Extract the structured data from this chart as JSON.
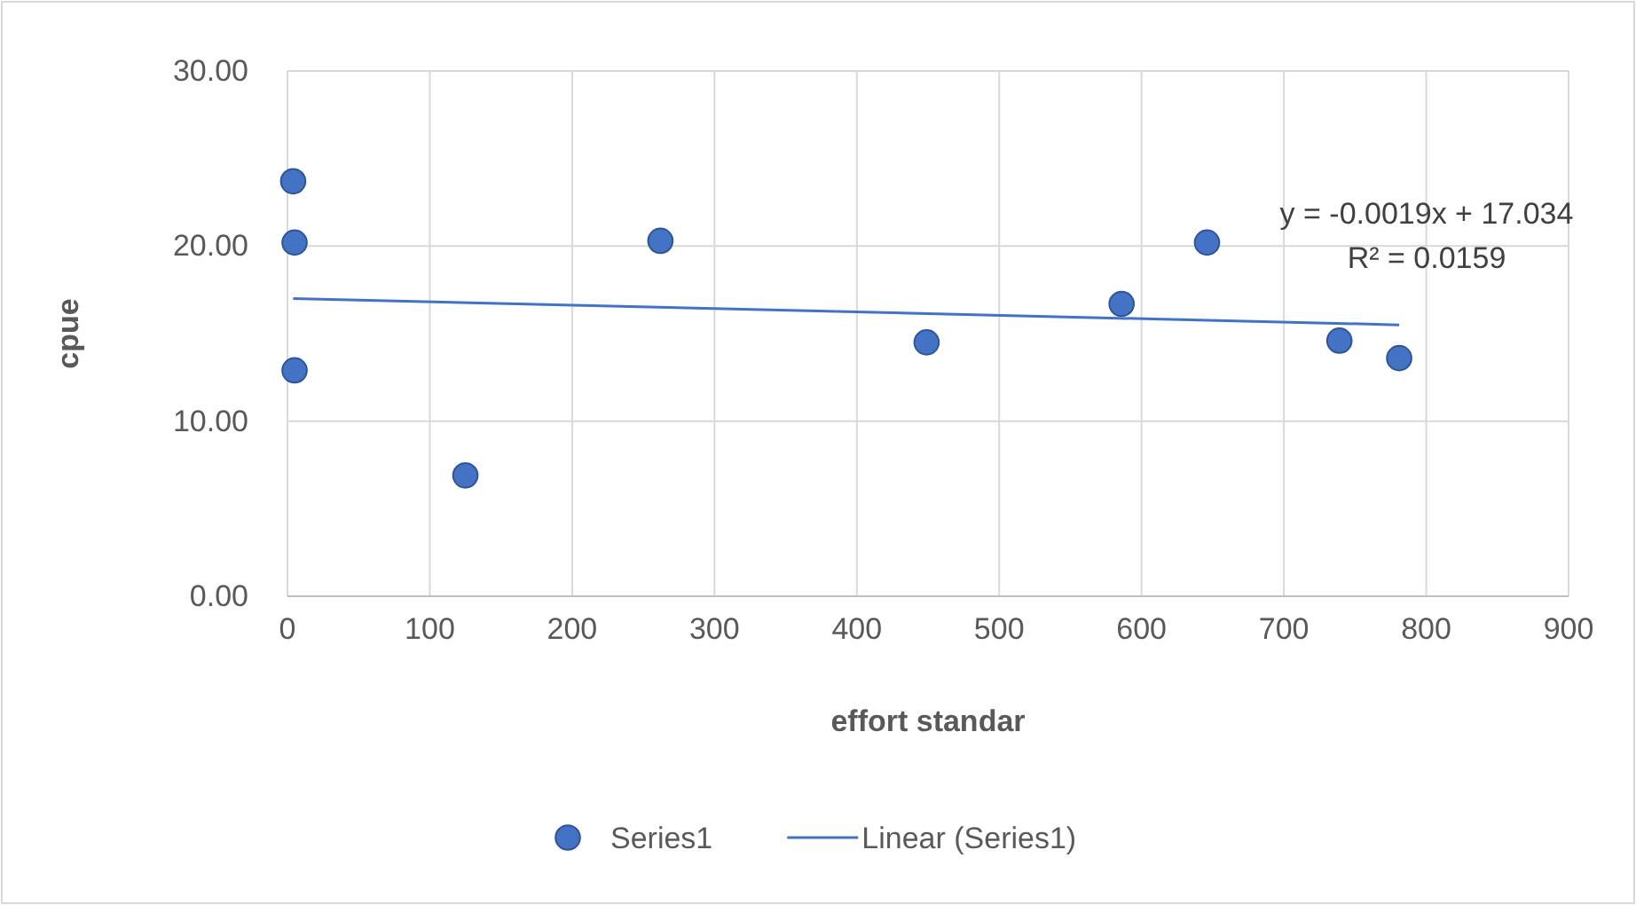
{
  "chart_data": {
    "type": "scatter",
    "xlabel": "effort standar",
    "ylabel": "cpue",
    "xlim": [
      0,
      900
    ],
    "xticks": [
      0,
      100,
      200,
      300,
      400,
      500,
      600,
      700,
      800,
      900
    ],
    "ylim": [
      0,
      30
    ],
    "yticks": [
      {
        "value": 0,
        "label": "0.00"
      },
      {
        "value": 10,
        "label": "10.00"
      },
      {
        "value": 20,
        "label": "20.00"
      },
      {
        "value": 30,
        "label": "30.00"
      }
    ],
    "grid": true,
    "legend": "bottom",
    "annotations": [
      "y = -0.0019x + 17.034",
      "R² = 0.0159"
    ],
    "series": [
      {
        "name": "Series1",
        "marker": "circle",
        "color": "#4472c4",
        "x": [
          4,
          5,
          5,
          125,
          262,
          449,
          586,
          646,
          739,
          781
        ],
        "values": [
          23.7,
          20.2,
          12.9,
          6.9,
          20.3,
          14.5,
          16.7,
          20.2,
          14.6,
          13.6
        ]
      },
      {
        "name": "Linear (Series1)",
        "type": "line",
        "color": "#4472c4",
        "line_style": "solid",
        "marker": "none",
        "x": [
          4,
          781
        ],
        "values": [
          17.0,
          15.5
        ]
      }
    ]
  }
}
